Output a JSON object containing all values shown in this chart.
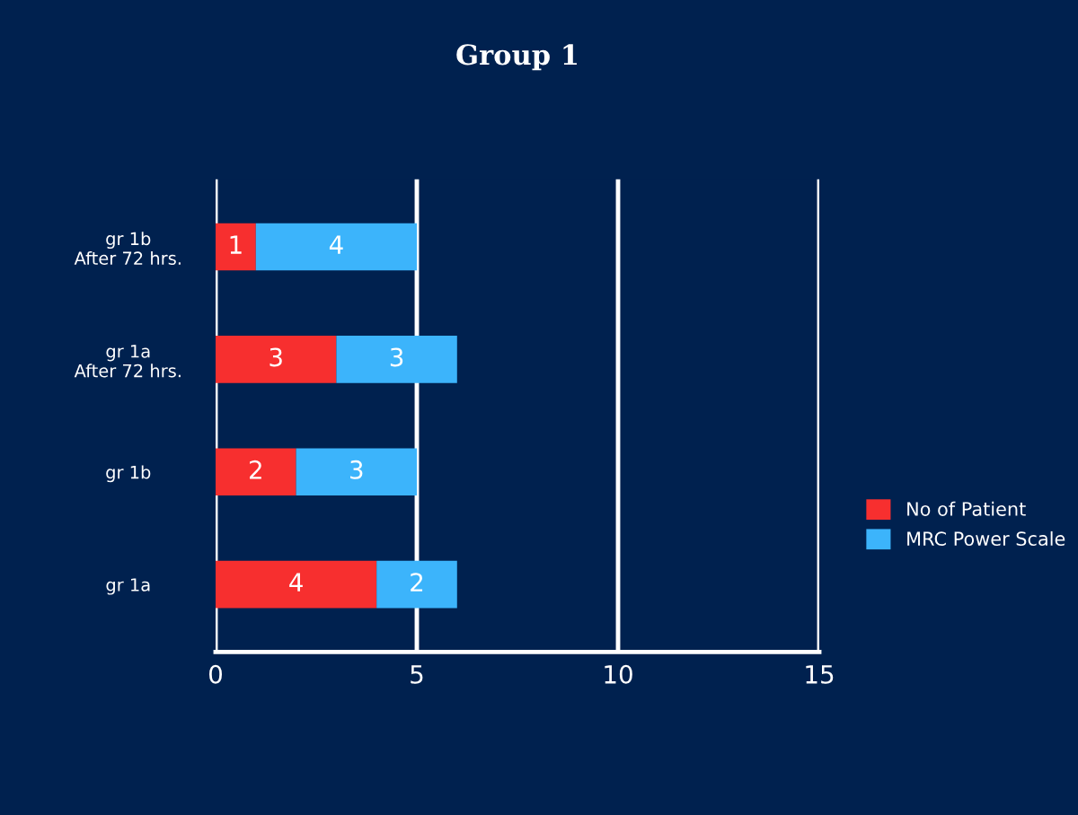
{
  "chart_data": {
    "type": "bar",
    "orientation": "horizontal",
    "stacked": true,
    "title": "Group 1",
    "categories": [
      "gr 1b\nAfter 72 hrs.",
      "gr 1a\nAfter 72 hrs.",
      "gr 1b",
      "gr 1a"
    ],
    "series": [
      {
        "name": "No of Patient",
        "color": "#f72f2f",
        "values": [
          1,
          3,
          2,
          4
        ]
      },
      {
        "name": "MRC Power Scale",
        "color": "#3cb4fb",
        "values": [
          4,
          3,
          3,
          2
        ]
      }
    ],
    "xlim": [
      0,
      15
    ],
    "xticks": [
      0,
      5,
      10,
      15
    ],
    "grid": "x",
    "legend": "right",
    "data_labels": true
  }
}
